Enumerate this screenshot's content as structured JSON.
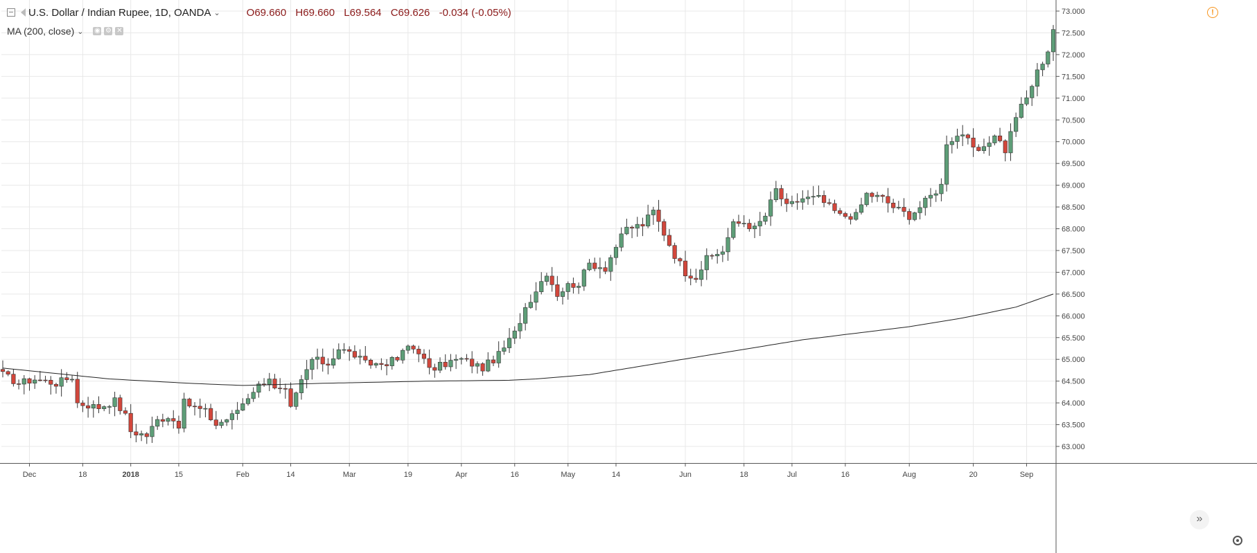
{
  "header": {
    "symbol": "U.S. Dollar / Indian Rupee, 1D, OANDA",
    "open": "O69.660",
    "high": "H69.660",
    "low": "L69.564",
    "close": "C69.626",
    "change": "-0.034 (-0.05%)"
  },
  "indicator": {
    "label": "MA (200, close)"
  },
  "colors": {
    "up": "#5e9e78",
    "down": "#d2473c",
    "wick": "#333333",
    "ma": "#222222",
    "grid": "#e8e8e8"
  },
  "chart_data": {
    "type": "candlestick",
    "title": "U.S. Dollar / Indian Rupee, 1D, OANDA",
    "ylim": [
      62.8,
      73.2
    ],
    "y_ticks": [
      "63.000",
      "63.500",
      "64.000",
      "64.500",
      "65.000",
      "65.500",
      "66.000",
      "66.500",
      "67.000",
      "67.500",
      "68.000",
      "68.500",
      "69.000",
      "69.500",
      "70.000",
      "70.500",
      "71.000",
      "71.500",
      "72.000",
      "72.500",
      "73.000"
    ],
    "x_ticks": [
      {
        "label": "Dec",
        "bar": 5,
        "bold": false
      },
      {
        "label": "18",
        "bar": 15,
        "bold": false
      },
      {
        "label": "2018",
        "bar": 24,
        "bold": true
      },
      {
        "label": "15",
        "bar": 33,
        "bold": false
      },
      {
        "label": "Feb",
        "bar": 45,
        "bold": false
      },
      {
        "label": "14",
        "bar": 54,
        "bold": false
      },
      {
        "label": "Mar",
        "bar": 65,
        "bold": false
      },
      {
        "label": "19",
        "bar": 76,
        "bold": false
      },
      {
        "label": "Apr",
        "bar": 86,
        "bold": false
      },
      {
        "label": "16",
        "bar": 96,
        "bold": false
      },
      {
        "label": "May",
        "bar": 106,
        "bold": false
      },
      {
        "label": "14",
        "bar": 115,
        "bold": false
      },
      {
        "label": "Jun",
        "bar": 128,
        "bold": false
      },
      {
        "label": "18",
        "bar": 139,
        "bold": false
      },
      {
        "label": "Jul",
        "bar": 148,
        "bold": false
      },
      {
        "label": "16",
        "bar": 158,
        "bold": false
      },
      {
        "label": "Aug",
        "bar": 170,
        "bold": false
      },
      {
        "label": "20",
        "bar": 182,
        "bold": false
      },
      {
        "label": "Sep",
        "bar": 192,
        "bold": false
      }
    ],
    "ohlc_knots": [
      [
        0,
        64.65
      ],
      [
        3,
        64.45
      ],
      [
        6,
        64.55
      ],
      [
        10,
        64.45
      ],
      [
        13,
        64.6
      ],
      [
        14,
        64.0
      ],
      [
        18,
        63.9
      ],
      [
        21,
        64.05
      ],
      [
        23,
        63.7
      ],
      [
        24,
        63.35
      ],
      [
        27,
        63.25
      ],
      [
        29,
        63.6
      ],
      [
        31,
        63.7
      ],
      [
        33,
        63.5
      ],
      [
        34,
        64.0
      ],
      [
        38,
        63.8
      ],
      [
        40,
        63.5
      ],
      [
        43,
        63.7
      ],
      [
        45,
        64.0
      ],
      [
        47,
        64.3
      ],
      [
        50,
        64.6
      ],
      [
        51,
        64.3
      ],
      [
        53,
        64.25
      ],
      [
        54,
        63.85
      ],
      [
        56,
        64.5
      ],
      [
        58,
        65.0
      ],
      [
        61,
        64.9
      ],
      [
        63,
        65.25
      ],
      [
        66,
        65.1
      ],
      [
        68,
        64.9
      ],
      [
        71,
        64.9
      ],
      [
        74,
        65.0
      ],
      [
        76,
        65.3
      ],
      [
        78,
        65.2
      ],
      [
        80,
        64.75
      ],
      [
        84,
        64.95
      ],
      [
        86,
        65.0
      ],
      [
        88,
        64.9
      ],
      [
        90,
        64.8
      ],
      [
        93,
        65.1
      ],
      [
        96,
        65.6
      ],
      [
        98,
        66.2
      ],
      [
        100,
        66.6
      ],
      [
        102,
        67.0
      ],
      [
        104,
        66.5
      ],
      [
        106,
        66.7
      ],
      [
        108,
        66.75
      ],
      [
        110,
        67.2
      ],
      [
        113,
        67.1
      ],
      [
        115,
        67.6
      ],
      [
        117,
        68.0
      ],
      [
        120,
        68.1
      ],
      [
        122,
        68.4
      ],
      [
        124,
        67.9
      ],
      [
        126,
        67.4
      ],
      [
        128,
        67.0
      ],
      [
        130,
        66.9
      ],
      [
        132,
        67.3
      ],
      [
        135,
        67.5
      ],
      [
        137,
        68.1
      ],
      [
        139,
        68.15
      ],
      [
        141,
        68.0
      ],
      [
        143,
        68.3
      ],
      [
        145,
        68.9
      ],
      [
        147,
        68.5
      ],
      [
        150,
        68.7
      ],
      [
        153,
        68.7
      ],
      [
        155,
        68.5
      ],
      [
        157,
        68.3
      ],
      [
        160,
        68.3
      ],
      [
        162,
        68.8
      ],
      [
        165,
        68.7
      ],
      [
        167,
        68.5
      ],
      [
        170,
        68.3
      ],
      [
        172,
        68.5
      ],
      [
        174,
        68.75
      ],
      [
        176,
        69.0
      ],
      [
        177,
        70.0
      ],
      [
        180,
        70.2
      ],
      [
        182,
        69.8
      ],
      [
        184,
        69.8
      ],
      [
        186,
        70.2
      ],
      [
        188,
        69.8
      ],
      [
        190,
        70.6
      ],
      [
        192,
        71.0
      ],
      [
        194,
        71.6
      ],
      [
        196,
        72.1
      ],
      [
        197,
        72.6
      ]
    ],
    "ma_knots": [
      [
        0,
        64.8
      ],
      [
        20,
        64.55
      ],
      [
        35,
        64.45
      ],
      [
        45,
        64.4
      ],
      [
        60,
        64.45
      ],
      [
        80,
        64.5
      ],
      [
        95,
        64.52
      ],
      [
        100,
        64.55
      ],
      [
        110,
        64.65
      ],
      [
        120,
        64.85
      ],
      [
        130,
        65.05
      ],
      [
        140,
        65.25
      ],
      [
        150,
        65.45
      ],
      [
        160,
        65.6
      ],
      [
        170,
        65.75
      ],
      [
        180,
        65.95
      ],
      [
        190,
        66.2
      ],
      [
        197,
        66.5
      ]
    ],
    "bar_count": 198
  }
}
